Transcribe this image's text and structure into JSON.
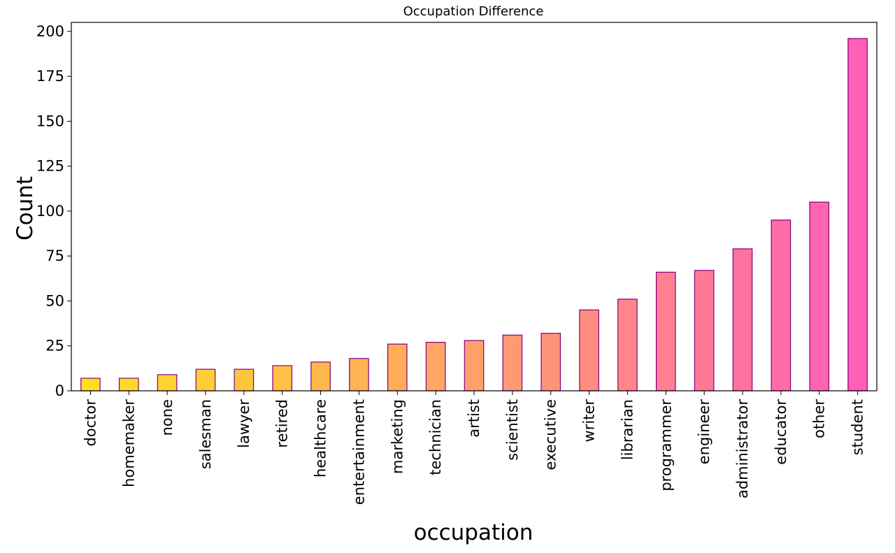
{
  "chart_data": {
    "type": "bar",
    "title": "Occupation Difference",
    "xlabel": "occupation",
    "ylabel": "Count",
    "categories": [
      "doctor",
      "homemaker",
      "none",
      "salesman",
      "lawyer",
      "retired",
      "healthcare",
      "entertainment",
      "marketing",
      "technician",
      "artist",
      "scientist",
      "executive",
      "writer",
      "librarian",
      "programmer",
      "engineer",
      "administrator",
      "educator",
      "other",
      "student"
    ],
    "values": [
      7,
      7,
      9,
      12,
      12,
      14,
      16,
      18,
      26,
      27,
      28,
      31,
      32,
      45,
      51,
      66,
      67,
      79,
      95,
      105,
      196
    ],
    "ylim": [
      0,
      205
    ],
    "yticks": [
      0,
      25,
      50,
      75,
      100,
      125,
      150,
      175,
      200
    ],
    "grid": false,
    "colormap": {
      "start": "#FFE01F",
      "end": "#FF5FB5"
    },
    "edge_color": "#800080"
  }
}
